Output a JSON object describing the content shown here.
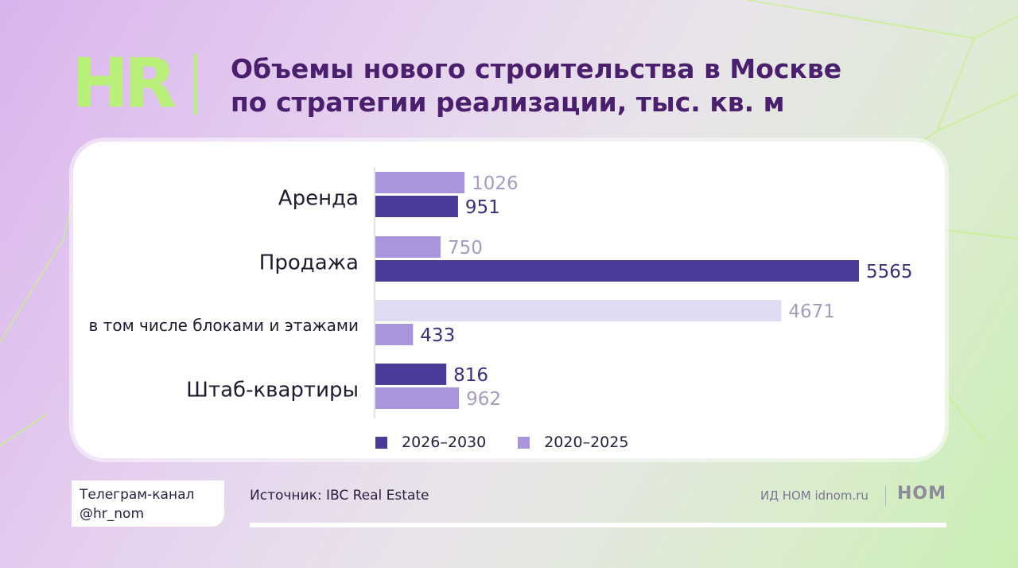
{
  "header": {
    "logo_text": "HR",
    "title_line1": "Объемы нового строительства в Москве",
    "title_line2": "по стратегии реализации, тыс. кв. м"
  },
  "colors": {
    "accent_green": "#b8f07a",
    "title_purple": "#4a1f6e",
    "series_2026_2030": "#4b3a97",
    "series_2020_2025": "#a995db",
    "series_highlight_light": "#e1dbf4"
  },
  "chart_data": {
    "type": "bar",
    "orientation": "horizontal",
    "categories": [
      "Аренда",
      "Продажа",
      "в том числе блоками и этажами",
      "Штаб-квартиры"
    ],
    "series": [
      {
        "name": "2026–2030",
        "values": [
          951,
          5565,
          433,
          816
        ]
      },
      {
        "name": "2020–2025",
        "values": [
          1026,
          750,
          4671,
          962
        ]
      }
    ],
    "legend_position": "bottom",
    "grid": false,
    "xlim": [
      0,
      5565
    ]
  },
  "legend": {
    "item1": "2026–2030",
    "item2": "2020–2025"
  },
  "footer": {
    "telegram_line1": "Телеграм-канал",
    "telegram_line2": "@hr_nom",
    "source": "Источник: IBC Real Estate",
    "publisher": "ИД НОМ idnom.ru",
    "publisher_logo": "НОМ"
  }
}
